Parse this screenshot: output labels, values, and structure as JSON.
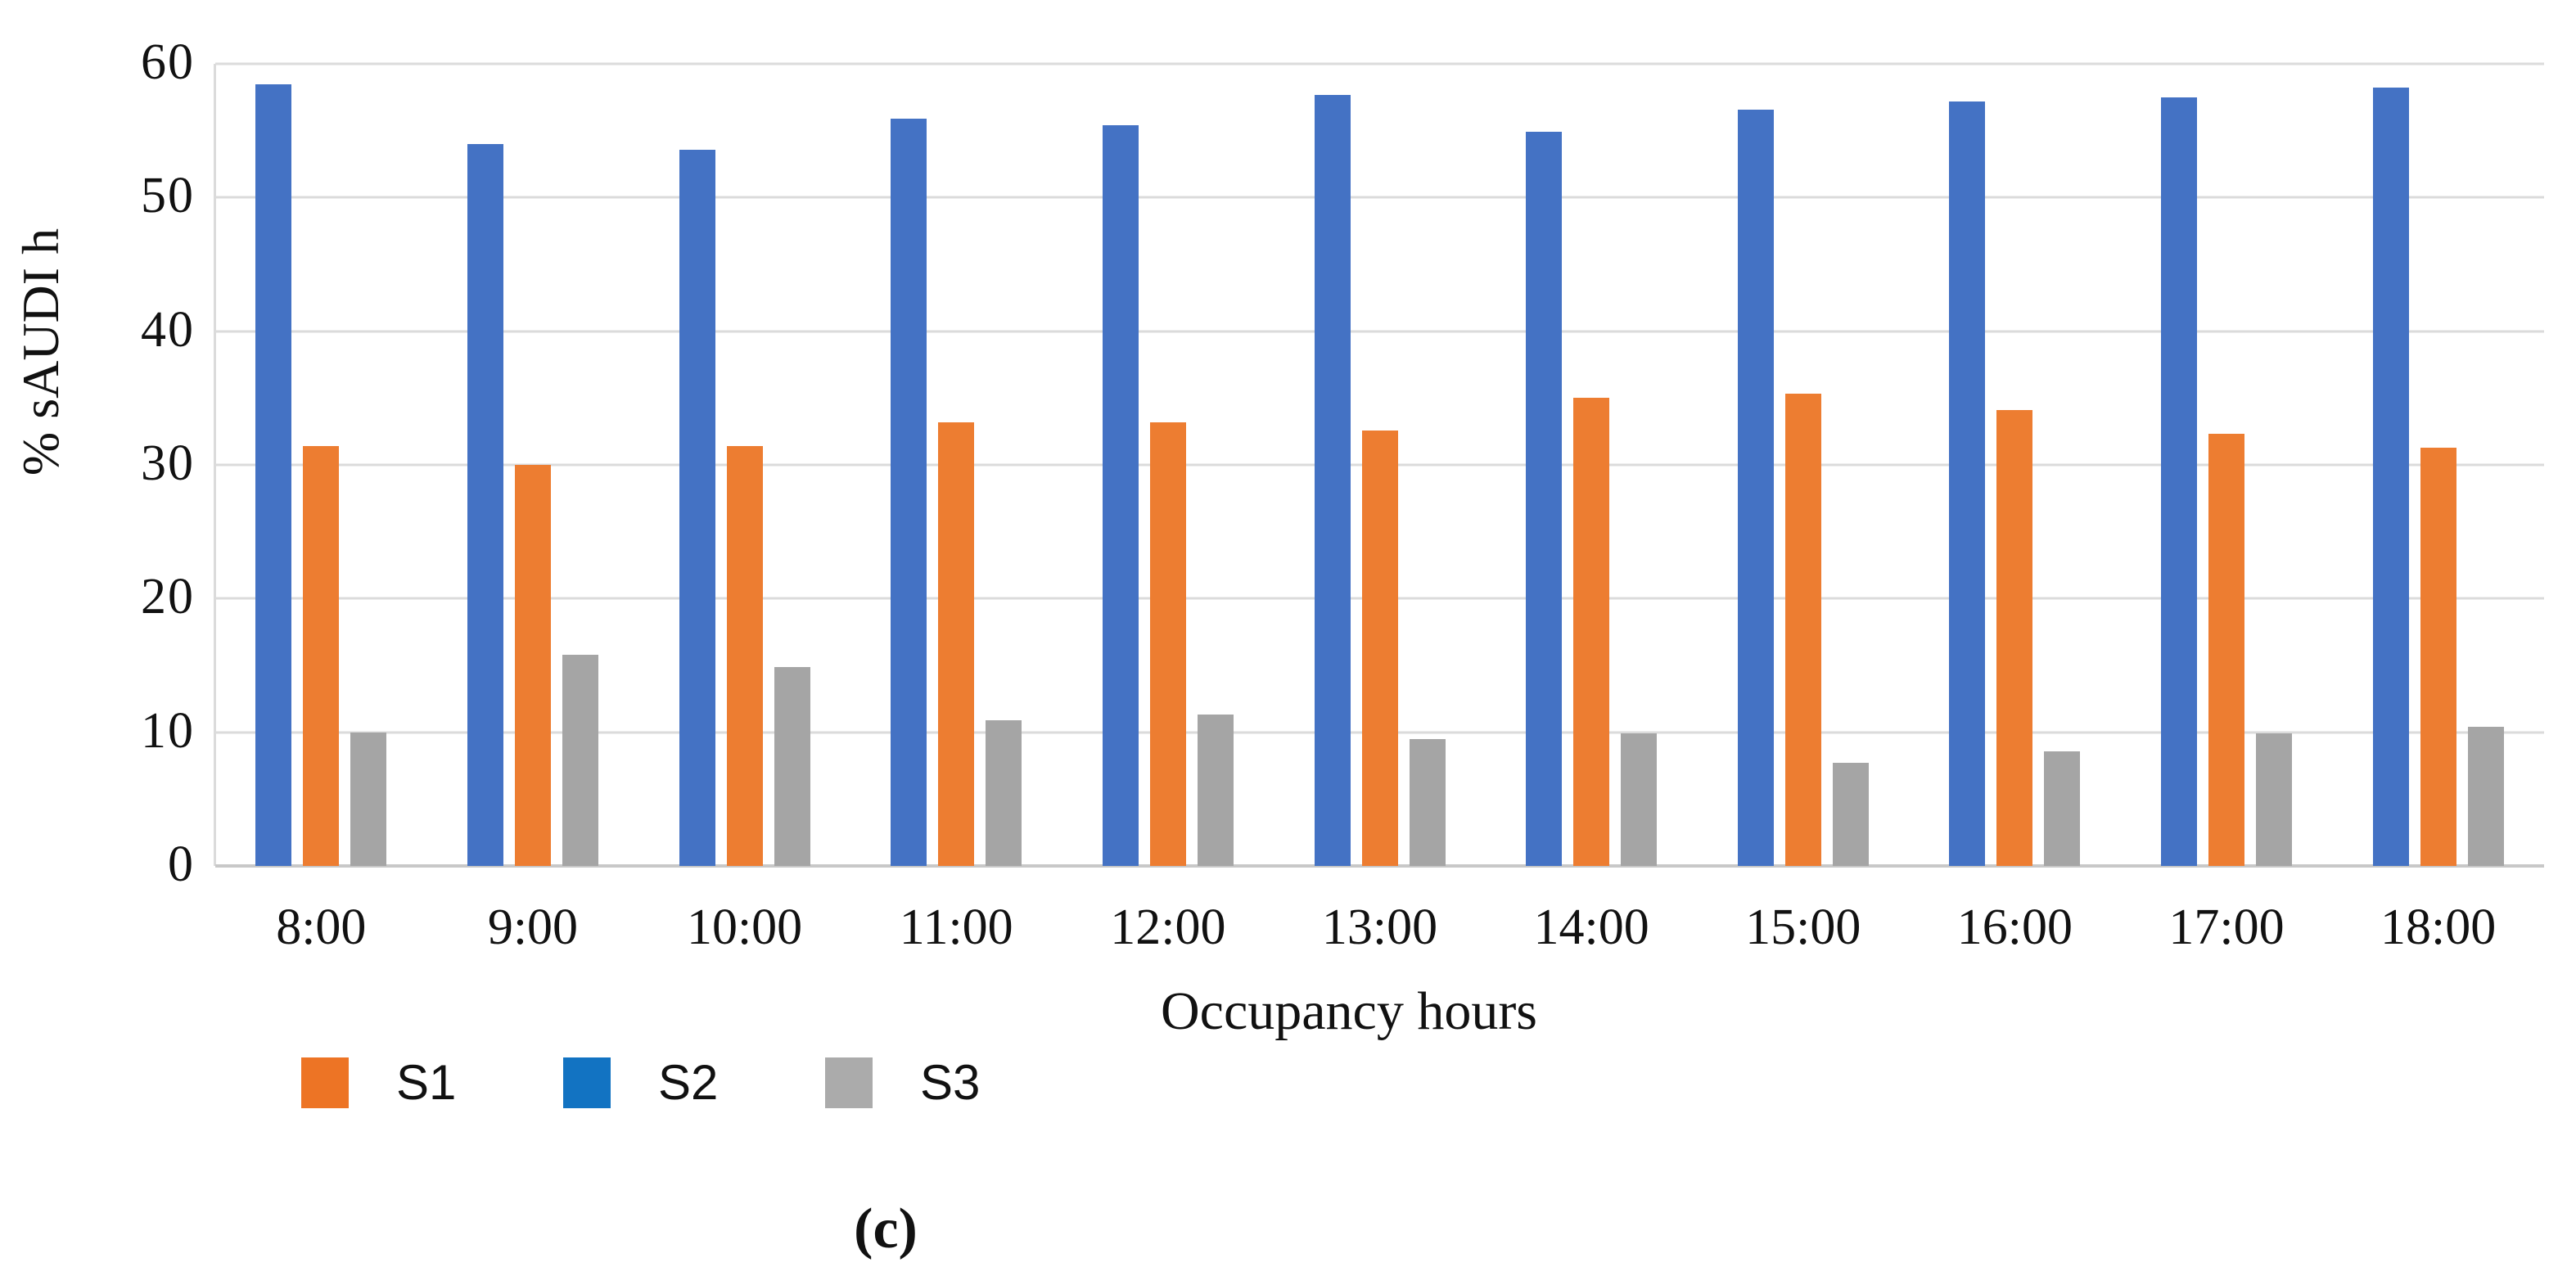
{
  "figure": {
    "caption": "(c)"
  },
  "chart_data": {
    "type": "bar",
    "title": "",
    "xlabel": "Occupancy hours",
    "ylabel": "% sAUDI h",
    "ylim": [
      0,
      60
    ],
    "yticks": [
      0,
      10,
      20,
      30,
      40,
      50,
      60
    ],
    "grid": true,
    "legend_position": "bottom",
    "categories": [
      "8:00",
      "9:00",
      "10:00",
      "11:00",
      "12:00",
      "13:00",
      "14:00",
      "15:00",
      "16:00",
      "17:00",
      "18:00"
    ],
    "bar_order": [
      "S2",
      "S1",
      "S3"
    ],
    "series": [
      {
        "name": "S1",
        "color": "#ED7D31",
        "legend_swatch_color": "#ED7425",
        "values": [
          31.4,
          30.0,
          31.4,
          33.2,
          33.2,
          32.6,
          35.0,
          35.3,
          34.1,
          32.3,
          31.3
        ]
      },
      {
        "name": "S2",
        "color": "#4472C4",
        "legend_swatch_color": "#1273C2",
        "values": [
          58.5,
          54.0,
          53.6,
          55.9,
          55.4,
          57.7,
          54.9,
          56.6,
          57.2,
          57.5,
          58.2
        ]
      },
      {
        "name": "S3",
        "color": "#A5A5A5",
        "legend_swatch_color": "#ABABAB",
        "values": [
          10.0,
          15.8,
          14.9,
          10.9,
          11.3,
          9.5,
          9.9,
          7.7,
          8.6,
          9.9,
          10.4
        ]
      }
    ]
  },
  "colors": {
    "background": "#FFFFFF",
    "gridline": "#DBDBDB",
    "axis_line": "#C8C8C8",
    "text": "#111111"
  }
}
